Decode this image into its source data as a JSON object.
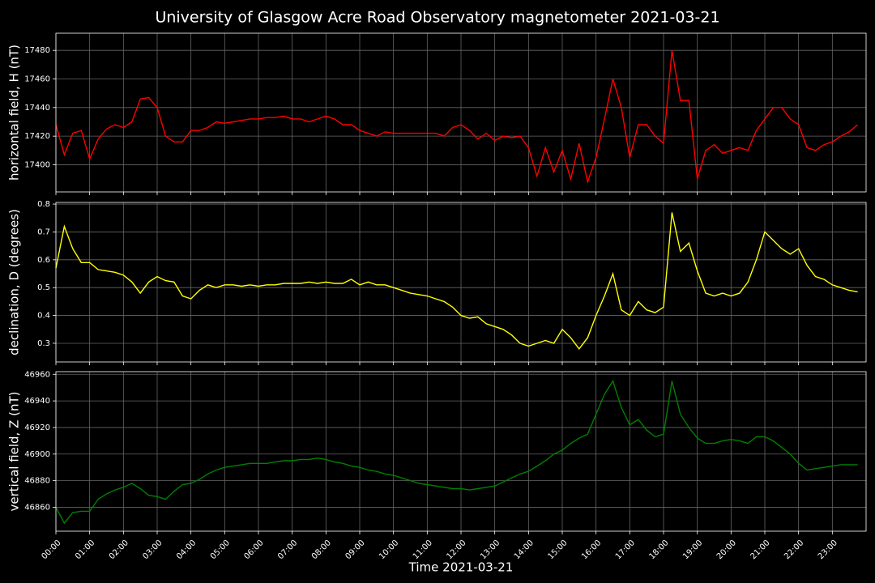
{
  "chart_data": {
    "type": "line",
    "title": "University of Glasgow Acre Road Observatory magnetometer 2021-03-21",
    "xlabel": "Time 2021-03-21",
    "xlim": [
      "00:00",
      "24:00"
    ],
    "xticks": [
      "00:00",
      "01:00",
      "02:00",
      "03:00",
      "04:00",
      "05:00",
      "06:00",
      "07:00",
      "08:00",
      "09:00",
      "10:00",
      "11:00",
      "12:00",
      "13:00",
      "14:00",
      "15:00",
      "16:00",
      "17:00",
      "18:00",
      "19:00",
      "20:00",
      "21:00",
      "22:00",
      "23:00"
    ],
    "grid": true,
    "x": [
      "00:00",
      "00:15",
      "00:30",
      "00:45",
      "01:00",
      "01:15",
      "01:30",
      "01:45",
      "02:00",
      "02:15",
      "02:30",
      "02:45",
      "03:00",
      "03:15",
      "03:30",
      "03:45",
      "04:00",
      "04:15",
      "04:30",
      "04:45",
      "05:00",
      "05:15",
      "05:30",
      "05:45",
      "06:00",
      "06:15",
      "06:30",
      "06:45",
      "07:00",
      "07:15",
      "07:30",
      "07:45",
      "08:00",
      "08:15",
      "08:30",
      "08:45",
      "09:00",
      "09:15",
      "09:30",
      "09:45",
      "10:00",
      "10:15",
      "10:30",
      "10:45",
      "11:00",
      "11:15",
      "11:30",
      "11:45",
      "12:00",
      "12:15",
      "12:30",
      "12:45",
      "13:00",
      "13:15",
      "13:30",
      "13:45",
      "14:00",
      "14:15",
      "14:30",
      "14:45",
      "15:00",
      "15:15",
      "15:30",
      "15:45",
      "16:00",
      "16:15",
      "16:30",
      "16:45",
      "17:00",
      "17:15",
      "17:30",
      "17:45",
      "18:00",
      "18:15",
      "18:30",
      "18:45",
      "19:00",
      "19:15",
      "19:30",
      "19:45",
      "20:00",
      "20:15",
      "20:30",
      "20:45",
      "21:00",
      "21:15",
      "21:30",
      "21:45",
      "22:00",
      "22:15",
      "22:30",
      "22:45",
      "23:00",
      "23:15",
      "23:30",
      "23:45"
    ],
    "panels": [
      {
        "ylabel": "horizontal field, H (nT)",
        "color": "#ff0000",
        "ylim": [
          17381,
          17492
        ],
        "yticks": [
          17400,
          17420,
          17440,
          17460,
          17480
        ],
        "values": [
          17428,
          17407,
          17422,
          17424,
          17404,
          17418,
          17425,
          17428,
          17426,
          17430,
          17446,
          17447,
          17440,
          17420,
          17416,
          17416,
          17424,
          17424,
          17426,
          17430,
          17429,
          17430,
          17431,
          17432,
          17432,
          17433,
          17433,
          17434,
          17432,
          17432,
          17430,
          17432,
          17434,
          17432,
          17428,
          17428,
          17424,
          17422,
          17420,
          17423,
          17422,
          17422,
          17422,
          17422,
          17422,
          17422,
          17420,
          17426,
          17428,
          17424,
          17418,
          17422,
          17417,
          17420,
          17419,
          17420,
          17412,
          17392,
          17412,
          17395,
          17410,
          17390,
          17415,
          17388,
          17405,
          17432,
          17460,
          17440,
          17405,
          17428,
          17428,
          17420,
          17415,
          17480,
          17445,
          17445,
          17390,
          17410,
          17414,
          17408,
          17410,
          17412,
          17410,
          17424,
          17432,
          17440,
          17440,
          17432,
          17428,
          17412,
          17410,
          17414,
          17416,
          17420,
          17423,
          17428
        ]
      },
      {
        "ylabel": "declination, D (degrees)",
        "color": "#ffff00",
        "ylim": [
          0.233,
          0.806
        ],
        "yticks": [
          0.3,
          0.4,
          0.5,
          0.6,
          0.7,
          0.8
        ],
        "values": [
          0.57,
          0.72,
          0.64,
          0.59,
          0.59,
          0.565,
          0.56,
          0.555,
          0.545,
          0.52,
          0.48,
          0.52,
          0.54,
          0.525,
          0.52,
          0.47,
          0.46,
          0.49,
          0.51,
          0.5,
          0.51,
          0.51,
          0.505,
          0.51,
          0.505,
          0.51,
          0.51,
          0.515,
          0.515,
          0.515,
          0.52,
          0.515,
          0.52,
          0.515,
          0.515,
          0.53,
          0.51,
          0.52,
          0.51,
          0.51,
          0.5,
          0.49,
          0.48,
          0.475,
          0.47,
          0.46,
          0.45,
          0.43,
          0.4,
          0.39,
          0.395,
          0.37,
          0.36,
          0.35,
          0.33,
          0.3,
          0.29,
          0.3,
          0.31,
          0.3,
          0.35,
          0.32,
          0.28,
          0.32,
          0.4,
          0.47,
          0.55,
          0.42,
          0.4,
          0.45,
          0.42,
          0.41,
          0.43,
          0.77,
          0.63,
          0.66,
          0.56,
          0.48,
          0.47,
          0.48,
          0.47,
          0.48,
          0.52,
          0.6,
          0.7,
          0.67,
          0.64,
          0.62,
          0.64,
          0.58,
          0.54,
          0.53,
          0.51,
          0.5,
          0.49,
          0.485
        ]
      },
      {
        "ylabel": "vertical field, Z (nT)",
        "color": "#008000",
        "ylim": [
          46842,
          46962
        ],
        "yticks": [
          46860,
          46880,
          46900,
          46920,
          46940,
          46960
        ],
        "values": [
          46860,
          46848,
          46856,
          46857,
          46857,
          46866,
          46870,
          46873,
          46875,
          46878,
          46874,
          46869,
          46868,
          46866,
          46872,
          46877,
          46878,
          46881,
          46885,
          46888,
          46890,
          46891,
          46892,
          46893,
          46893,
          46893,
          46894,
          46895,
          46895,
          46896,
          46896,
          46897,
          46896,
          46894,
          46893,
          46891,
          46890,
          46888,
          46887,
          46885,
          46884,
          46882,
          46880,
          46878,
          46877,
          46876,
          46875,
          46874,
          46874,
          46873,
          46874,
          46875,
          46876,
          46879,
          46882,
          46885,
          46887,
          46891,
          46895,
          46900,
          46903,
          46908,
          46912,
          46915,
          46930,
          46945,
          46955,
          46935,
          46922,
          46926,
          46918,
          46913,
          46915,
          46955,
          46930,
          46920,
          46912,
          46908,
          46908,
          46910,
          46911,
          46910,
          46908,
          46913,
          46913,
          46910,
          46905,
          46900,
          46893,
          46888,
          46889,
          46890,
          46891,
          46892,
          46892,
          46892
        ]
      }
    ]
  }
}
